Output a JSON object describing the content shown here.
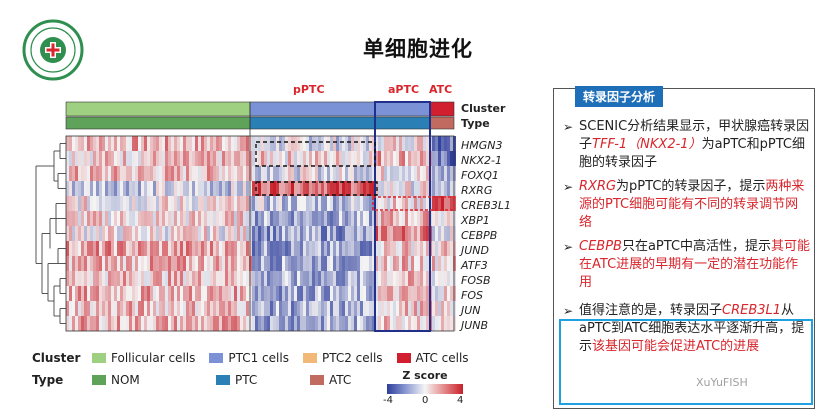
{
  "slide": {
    "title": "单细胞进化"
  },
  "logo": {
    "icon": "hospital-emblem-icon"
  },
  "groups": {
    "pptc": "pPTC",
    "aptc": "aPTC",
    "atc": "ATC"
  },
  "tracks": {
    "cluster": "Cluster",
    "type": "Type"
  },
  "genes": [
    "HMGN3",
    "NKX2-1",
    "FOXQ1",
    "RXRG",
    "CREB3L1",
    "XBP1",
    "CEBPB",
    "JUND",
    "ATF3",
    "FOSB",
    "FOS",
    "JUN",
    "JUNB"
  ],
  "legend": {
    "cluster_title": "Cluster",
    "cluster_items": [
      {
        "label": "Follicular cells",
        "color": "#9fcf80"
      },
      {
        "label": "PTC1 cells",
        "color": "#7b92d6"
      },
      {
        "label": "PTC2 cells",
        "color": "#f2b878"
      },
      {
        "label": "ATC cells",
        "color": "#d21f30"
      }
    ],
    "type_title": "Type",
    "type_items": [
      {
        "label": "NOM",
        "color": "#5fa35a"
      },
      {
        "label": "PTC",
        "color": "#2a7fb5"
      },
      {
        "label": "ATC",
        "color": "#c06a60"
      }
    ]
  },
  "zscore": {
    "title": "Z score",
    "ticks": [
      "-4",
      "0",
      "4"
    ]
  },
  "panel": {
    "header": "转录因子分析",
    "b1_p1": "SCENIC分析结果显示，甲状腺癌转录因子",
    "b1_gene": "TFF-1（NKX2-1）",
    "b1_p2": "为aPTC和pPTC细胞的转录因子",
    "b2_gene": "RXRG",
    "b2_p1": "为pPTC的转录因子，提示",
    "b2_p2": "两种来源的PTC细胞可能有不同的转录调节网络",
    "b3_gene": "CEBPB",
    "b3_p1": "只在aPTC中高活性，提示",
    "b3_p2": "其可能在ATC进展的早期有一定的潜在功能作用",
    "b4_p1": "值得注意的是，转录因子",
    "b4_gene": "CREB3L1",
    "b4_p2": "从aPTC到ATC细胞表达水平逐渐升高，提示",
    "b4_p3": "该基因可能会促进ATC的进展"
  },
  "watermark": "XuYuFISH",
  "colors": {
    "accent_red": "#d8262c",
    "accent_blue": "#1f6fb8",
    "highlight_blue": "#1da1e0"
  }
}
